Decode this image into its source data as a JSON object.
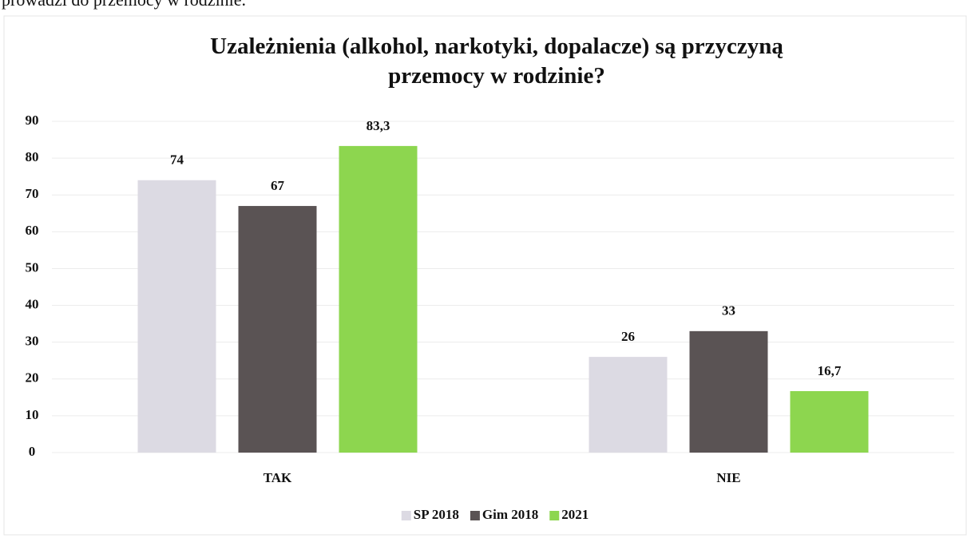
{
  "caption": "prowadzi do przemocy w rodzinie.",
  "chart_data": {
    "type": "bar",
    "title": "Uzależnienia (alkohol, narkotyki, dopalacze) są przyczyną przemocy w rodzinie?",
    "categories": [
      "TAK",
      "NIE"
    ],
    "series": [
      {
        "name": "SP 2018",
        "color": "#dcdae3",
        "values": [
          74,
          26
        ],
        "value_labels": [
          "74",
          "26"
        ]
      },
      {
        "name": "Gim 2018",
        "color": "#5a5354",
        "values": [
          67,
          33
        ],
        "value_labels": [
          "67",
          "33"
        ]
      },
      {
        "name": "2021",
        "color": "#8dd64f",
        "values": [
          83.3,
          16.7
        ],
        "value_labels": [
          "83,3",
          "16,7"
        ]
      }
    ],
    "ylim": [
      0,
      90
    ],
    "yticks": [
      0,
      10,
      20,
      30,
      40,
      50,
      60,
      70,
      80,
      90
    ],
    "grid": true,
    "legend": "bottom"
  }
}
